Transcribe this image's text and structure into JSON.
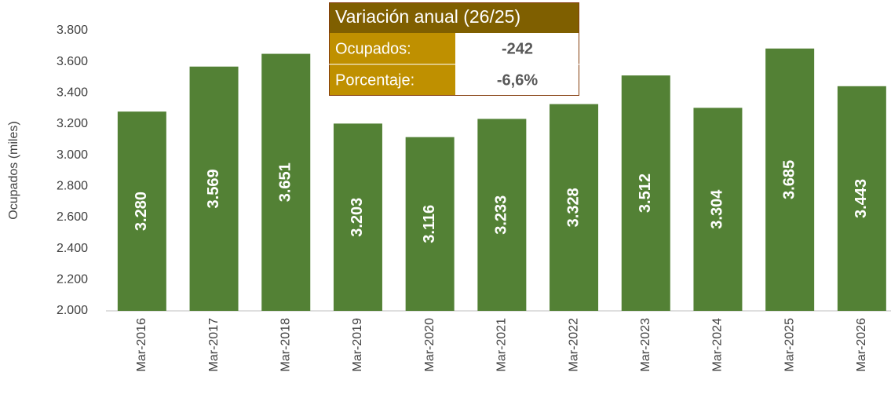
{
  "chart_data": {
    "type": "bar",
    "y_axis_label": "Ocupados (miles)",
    "categories": [
      "Mar-2016",
      "Mar-2017",
      "Mar-2018",
      "Mar-2019",
      "Mar-2020",
      "Mar-2021",
      "Mar-2022",
      "Mar-2023",
      "Mar-2024",
      "Mar-2025",
      "Mar-2026"
    ],
    "values": [
      3280,
      3569,
      3651,
      3203,
      3116,
      3233,
      3328,
      3512,
      3304,
      3685,
      3443
    ],
    "value_labels": [
      "3.280",
      "3.569",
      "3.651",
      "3.203",
      "3.116",
      "3.233",
      "3.328",
      "3.512",
      "3.304",
      "3.685",
      "3.443"
    ],
    "color": "#538135",
    "ylim": [
      2000,
      3800
    ],
    "yticks": [
      {
        "value": 2000,
        "label": "2.000"
      },
      {
        "value": 2200,
        "label": "2.200"
      },
      {
        "value": 2400,
        "label": "2.400"
      },
      {
        "value": 2600,
        "label": "2.600"
      },
      {
        "value": 2800,
        "label": "2.800"
      },
      {
        "value": 3000,
        "label": "3.000"
      },
      {
        "value": 3200,
        "label": "3.200"
      },
      {
        "value": 3400,
        "label": "3.400"
      },
      {
        "value": 3600,
        "label": "3.600"
      },
      {
        "value": 3800,
        "label": "3.800"
      }
    ],
    "grid": false,
    "annotation": {
      "title": "Variación anual (26/25)",
      "rows": [
        [
          "Ocupados:",
          "-242"
        ],
        [
          "Porcentaje:",
          "-6,6%"
        ]
      ]
    }
  }
}
